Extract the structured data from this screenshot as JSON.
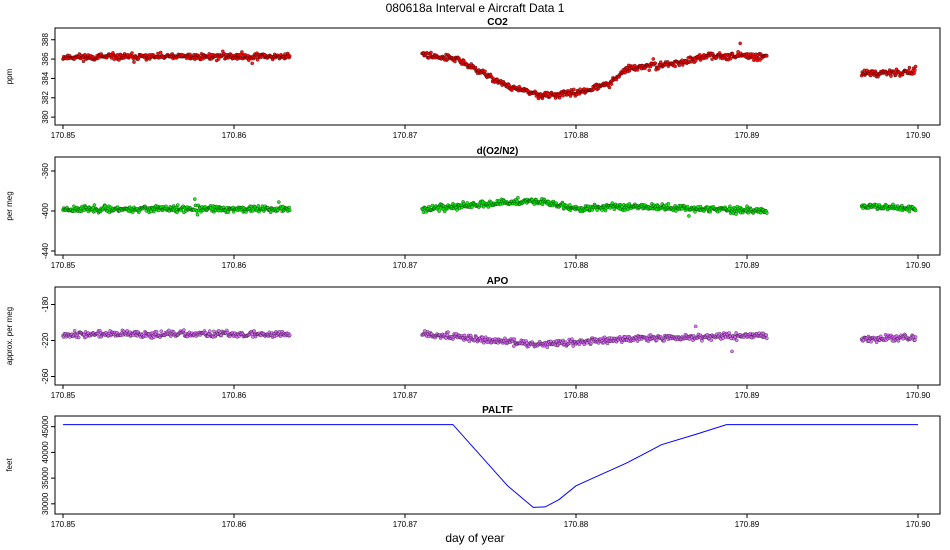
{
  "title": "080618a   Interval e Aircraft Data 1",
  "xlabel": "day of year",
  "chart_data": [
    {
      "type": "scatter",
      "title": "CO2",
      "ylabel": "ppm",
      "color": "#ff0000",
      "xlim": [
        170.85,
        170.9
      ],
      "ylim": [
        379.6,
        388.8
      ],
      "x_ticks": [
        "170.85",
        "170.86",
        "170.87",
        "170.88",
        "170.89",
        "170.90"
      ],
      "y_ticks": [
        "380",
        "382",
        "384",
        "386",
        "388"
      ],
      "series": [
        {
          "x": [
            170.85,
            170.8633,
            170.871,
            170.873,
            170.876,
            170.878,
            170.88,
            170.882,
            170.883,
            170.886,
            170.888,
            170.8912,
            170.8967,
            170.8999
          ],
          "y": [
            386.2,
            386.3,
            386.5,
            386.0,
            383.2,
            382.2,
            382.5,
            383.5,
            385.0,
            385.6,
            386.4,
            386.3,
            384.5,
            384.7
          ]
        }
      ]
    },
    {
      "type": "scatter",
      "title": "d(O2/N2)",
      "ylabel": "per meg",
      "color": "#00ee00",
      "xlim": [
        170.85,
        170.9
      ],
      "ylim": [
        -440,
        -350
      ],
      "x_ticks": [
        "170.85",
        "170.86",
        "170.87",
        "170.88",
        "170.89",
        "170.90"
      ],
      "y_ticks": [
        "-440",
        "-400",
        "-360"
      ],
      "series": [
        {
          "x": [
            170.85,
            170.8633,
            170.871,
            170.875,
            170.878,
            170.88,
            170.883,
            170.8912,
            170.8967,
            170.8999
          ],
          "y": [
            -398,
            -398,
            -398,
            -393,
            -390,
            -398,
            -395,
            -400,
            -396,
            -397
          ]
        }
      ]
    },
    {
      "type": "scatter",
      "title": "APO",
      "ylabel": "approx. per meg",
      "color": "#e066ff",
      "xlim": [
        170.85,
        170.9
      ],
      "ylim": [
        -265,
        -165
      ],
      "x_ticks": [
        "170.85",
        "170.86",
        "170.87",
        "170.88",
        "170.89",
        "170.90"
      ],
      "y_ticks": [
        "-260",
        "-220",
        "-180"
      ],
      "series": [
        {
          "x": [
            170.85,
            170.8633,
            170.871,
            170.875,
            170.878,
            170.88,
            170.883,
            170.8912,
            170.8967,
            170.8999
          ],
          "y": [
            -213,
            -213,
            -212,
            -220,
            -224,
            -222,
            -218,
            -214,
            -219,
            -216
          ]
        }
      ]
    },
    {
      "type": "line",
      "title": "PALTF",
      "ylabel": "feet",
      "color": "#0000ff",
      "xlim": [
        170.85,
        170.9
      ],
      "ylim": [
        28800,
        46300
      ],
      "x_ticks": [
        "170.85",
        "170.86",
        "170.87",
        "170.88",
        "170.89",
        "170.90"
      ],
      "y_ticks": [
        "30000",
        "35000",
        "40000",
        "45000"
      ],
      "series": [
        {
          "x": [
            170.85,
            170.86,
            170.87,
            170.8728,
            170.876,
            170.8775,
            170.8782,
            170.879,
            170.88,
            170.881,
            170.883,
            170.885,
            170.887,
            170.8888,
            170.895,
            170.9
          ],
          "y": [
            45400,
            45400,
            45400,
            45400,
            33500,
            29300,
            29400,
            30800,
            33500,
            35000,
            38000,
            41500,
            43500,
            45400,
            45400,
            45400
          ]
        }
      ]
    }
  ]
}
